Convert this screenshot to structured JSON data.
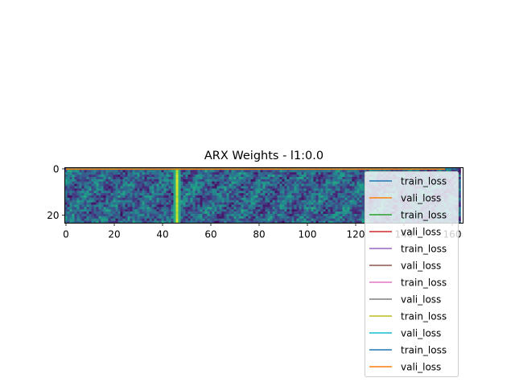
{
  "chart_data": {
    "type": "heatmap",
    "title": "ARX Weights - l1:0.0",
    "xlabel": "",
    "ylabel": "",
    "x_ticks": [
      0,
      20,
      40,
      60,
      80,
      100,
      120,
      140,
      160
    ],
    "y_ticks": [
      0,
      20
    ],
    "xlim": [
      -0.5,
      164.5
    ],
    "ylim": [
      23.5,
      -0.5
    ],
    "grid": false,
    "colormap": "viridis",
    "heatmap_shape": [
      24,
      164
    ],
    "description": "",
    "series": [
      {
        "name": "train_loss",
        "color": "#1f77b4"
      },
      {
        "name": "vali_loss",
        "color": "#ff7f0e"
      },
      {
        "name": "train_loss",
        "color": "#2ca02c"
      },
      {
        "name": "vali_loss",
        "color": "#d62728"
      },
      {
        "name": "train_loss",
        "color": "#9467bd"
      },
      {
        "name": "vali_loss",
        "color": "#8c564b"
      },
      {
        "name": "train_loss",
        "color": "#e377c2"
      },
      {
        "name": "vali_loss",
        "color": "#7f7f7f"
      },
      {
        "name": "train_loss",
        "color": "#bcbd22"
      },
      {
        "name": "vali_loss",
        "color": "#17becf"
      },
      {
        "name": "train_loss",
        "color": "#1f77b4"
      },
      {
        "name": "vali_loss",
        "color": "#ff7f0e"
      }
    ],
    "legend_position": "lower-right"
  }
}
